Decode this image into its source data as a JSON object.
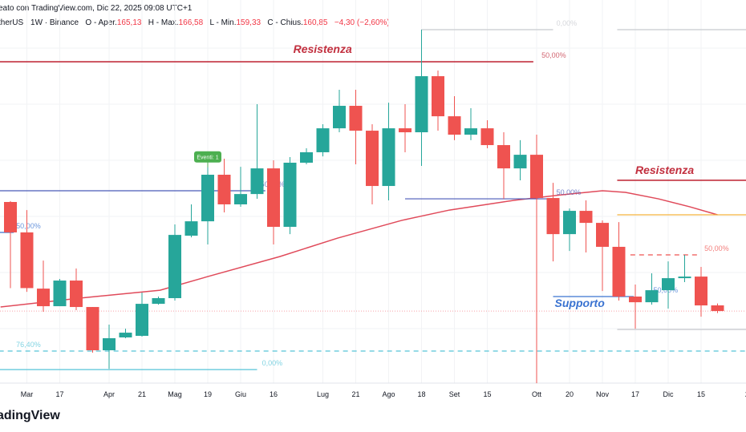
{
  "header": {
    "created": "eato con TradingView.com, Dic 22, 2025 09:08 UTC+1",
    "symbol": "therUS · 1W · Binance",
    "o_label": "O - Aper.",
    "open": "165,13",
    "h_label": "H - Max.",
    "high": "166,58",
    "l_label": "L - Min.",
    "low": "159,33",
    "c_label": "C - Chius.",
    "close": "160,85",
    "change": "−4,30 (−2,60%)"
  },
  "footer": {
    "logo": "adingView"
  },
  "colors": {
    "up": "#26a69a",
    "down": "#ef5350",
    "ma": "#e04a5a",
    "resist": "#c2303f",
    "support": "#3a73d1",
    "fib_blue": "#4a5ab8",
    "cyan": "#56c4d8",
    "orange": "#f5b53f",
    "gray": "#c8cacf"
  },
  "chart_data": {
    "type": "candlestick",
    "title": "",
    "xlabel": "",
    "ylabel": "",
    "ylim": [
      69.4,
      396
    ],
    "candles": [
      [
        243.3,
        244,
        178.2,
        220.3
      ],
      [
        220.3,
        237.2,
        175.4,
        178.2
      ],
      [
        177.8,
        199,
        160.3,
        164.5
      ],
      [
        164.5,
        185.1,
        164.5,
        183.9
      ],
      [
        183.9,
        193,
        161.5,
        163.9
      ],
      [
        163.9,
        163.9,
        129.4,
        131.2
      ],
      [
        131.2,
        150.6,
        117.2,
        140.3
      ],
      [
        140.9,
        147.5,
        140.3,
        144.5
      ],
      [
        142.1,
        174.8,
        141.5,
        166.3
      ],
      [
        166.3,
        171.8,
        165.7,
        170.6
      ],
      [
        170.6,
        226.3,
        168.8,
        218.4
      ],
      [
        217.8,
        241.5,
        216.6,
        228.7
      ],
      [
        228.7,
        276.6,
        211.2,
        263.9
      ],
      [
        263.9,
        276,
        235.4,
        241.5
      ],
      [
        241.5,
        269.9,
        239.7,
        249.3
      ],
      [
        249.3,
        317.2,
        245.7,
        268.7
      ],
      [
        268.7,
        274.8,
        211.2,
        224.5
      ],
      [
        224.5,
        277.2,
        219,
        273
      ],
      [
        273,
        283.9,
        271.8,
        280.9
      ],
      [
        280.9,
        302.1,
        277.8,
        299
      ],
      [
        299,
        328.1,
        296,
        316
      ],
      [
        316,
        328.1,
        271.8,
        297.2
      ],
      [
        297.2,
        302.1,
        241.5,
        255.4
      ],
      [
        255.4,
        318.4,
        244.5,
        299
      ],
      [
        299,
        317.2,
        280.9,
        296
      ],
      [
        296,
        373.6,
        270.6,
        338.4
      ],
      [
        338.4,
        342.7,
        297.2,
        308.1
      ],
      [
        308.1,
        323.3,
        290,
        294.2
      ],
      [
        294.2,
        314.2,
        290,
        299
      ],
      [
        299,
        305.1,
        283.9,
        286.3
      ],
      [
        286.3,
        296,
        245.7,
        268.7
      ],
      [
        268.7,
        290,
        259.7,
        279
      ],
      [
        279,
        294.2,
        106.3,
        246.3
      ],
      [
        246.3,
        257.8,
        198.4,
        219
      ],
      [
        219,
        238.4,
        206.3,
        236.6
      ],
      [
        236.6,
        244.5,
        205.1,
        227.5
      ],
      [
        227.5,
        229.4,
        176,
        209.4
      ],
      [
        209.4,
        228.1,
        168.8,
        171.8
      ],
      [
        171.8,
        180.9,
        147.5,
        167.5
      ],
      [
        167.5,
        189.4,
        165.7,
        176.6
      ],
      [
        176.6,
        198.4,
        162.7,
        185.7
      ],
      [
        185.7,
        203.3,
        182.7,
        186.9
      ],
      [
        186.9,
        194.2,
        156.6,
        165.1
      ],
      [
        165.13,
        166.58,
        159.33,
        160.85
      ]
    ],
    "ma": [
      [
        -0.6,
        163.9
      ],
      [
        4.2,
        170.6
      ],
      [
        9.1,
        176.6
      ],
      [
        12,
        186.9
      ],
      [
        16.4,
        202.1
      ],
      [
        19.9,
        216
      ],
      [
        23.8,
        229.4
      ],
      [
        26.7,
        237.2
      ],
      [
        30.6,
        244.5
      ],
      [
        33.5,
        248.7
      ],
      [
        36,
        251.8
      ],
      [
        37.4,
        250.6
      ],
      [
        39.4,
        245.7
      ],
      [
        41.3,
        239.7
      ],
      [
        43,
        233.6
      ]
    ],
    "xticks": [
      {
        "i": 1,
        "label": "Mar"
      },
      {
        "i": 3,
        "label": "17"
      },
      {
        "i": 6,
        "label": "Apr"
      },
      {
        "i": 8,
        "label": "21"
      },
      {
        "i": 10,
        "label": "Mag"
      },
      {
        "i": 12,
        "label": "19"
      },
      {
        "i": 14,
        "label": "Giu"
      },
      {
        "i": 16,
        "label": "16"
      },
      {
        "i": 19,
        "label": "Lug"
      },
      {
        "i": 21,
        "label": "21"
      },
      {
        "i": 23,
        "label": "Ago"
      },
      {
        "i": 25,
        "label": "18"
      },
      {
        "i": 27,
        "label": "Set"
      },
      {
        "i": 29,
        "label": "15"
      },
      {
        "i": 32,
        "label": "Ott"
      },
      {
        "i": 34,
        "label": "20"
      },
      {
        "i": 36,
        "label": "Nov"
      },
      {
        "i": 38,
        "label": "17"
      },
      {
        "i": 40,
        "label": "Dic"
      },
      {
        "i": 42,
        "label": "15"
      },
      {
        "i": 44.8,
        "label": "2"
      }
    ],
    "lines": [
      {
        "name": "resistance-line-1",
        "price": 349.3,
        "from": -0.7,
        "to": 31.8,
        "color": "resist",
        "label": "50,00%",
        "li": 32.3,
        "dash": false
      },
      {
        "name": "fib-top-line",
        "price": 373.6,
        "from": 25,
        "to": 33,
        "color": "gray",
        "label": "0,00%",
        "li": 33.2,
        "dash": false
      },
      {
        "name": "fib-top-line-right",
        "price": 373.6,
        "from": 36.9,
        "to": 44.8,
        "color": "gray",
        "label": "",
        "li": 0,
        "dash": false
      },
      {
        "name": "fib-mid-line-left",
        "price": 251.8,
        "from": -0.7,
        "to": 15.5,
        "color": "fib_blue",
        "label": "50,00%",
        "li": 15.2,
        "dash": false
      },
      {
        "name": "fib-mid-line-center",
        "price": 245.7,
        "from": 24,
        "to": 33,
        "color": "fib_blue",
        "label": "50,00%",
        "li": 33.2,
        "dash": false
      },
      {
        "name": "fib-mid-line-small",
        "price": 220.3,
        "from": -0.7,
        "to": 0.2,
        "color": "support",
        "label": "50,00%",
        "li": 0.35,
        "dash": false
      },
      {
        "name": "fib-764-line",
        "price": 130.6,
        "from": -0.7,
        "to": 44.8,
        "color": "cyan",
        "label": "76,40%",
        "li": 0.35,
        "dash": true
      },
      {
        "name": "fib-bottom-line",
        "price": 116.6,
        "from": -0.7,
        "to": 15,
        "color": "cyan",
        "label": "0,00%",
        "li": 15.3,
        "dash": false
      },
      {
        "name": "resistance-line-2",
        "price": 259.7,
        "from": 36.9,
        "to": 44.8,
        "color": "resist",
        "label": "",
        "li": 0,
        "dash": false
      },
      {
        "name": "orange-level-line",
        "price": 233.6,
        "from": 36.9,
        "to": 44.8,
        "color": "orange",
        "label": "",
        "li": 0,
        "dash": false
      },
      {
        "name": "fib-dashed-red-line",
        "price": 203.3,
        "from": 37.7,
        "to": 41.8,
        "color": "down",
        "label": "50,00%",
        "li": 42.2,
        "dash": true
      },
      {
        "name": "support-line",
        "price": 171.8,
        "from": 33,
        "to": 37.9,
        "color": "support",
        "label": "50,00%",
        "li": 39.1,
        "dash": false
      },
      {
        "name": "lower-gray-line",
        "price": 146.9,
        "from": 36.9,
        "to": 44.8,
        "color": "gray",
        "label": "",
        "li": 0,
        "dash": false
      }
    ],
    "annotations": [
      {
        "text": "Resistenza",
        "i": 17.2,
        "price": 356,
        "color": "resist"
      },
      {
        "text": "Resistenza",
        "i": 38,
        "price": 264.5,
        "color": "resist"
      },
      {
        "text": "Supporto",
        "i": 33.1,
        "price": 164,
        "color": "support"
      }
    ],
    "event": {
      "i": 12,
      "price": 278,
      "text": "Eventi: 1"
    }
  }
}
